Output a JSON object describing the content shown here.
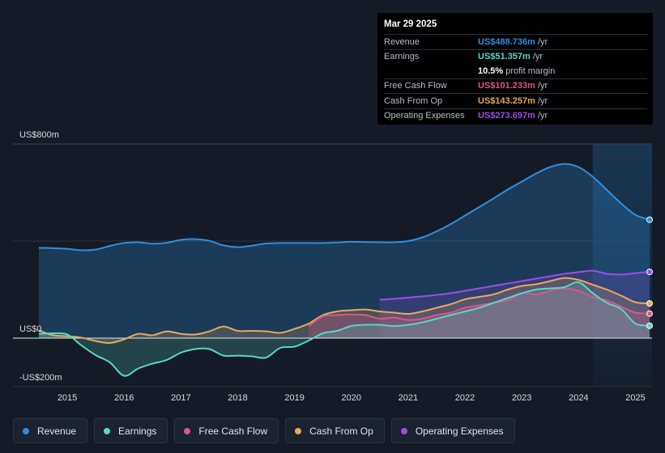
{
  "tooltip": {
    "date": "Mar 29 2025",
    "revenue_label": "Revenue",
    "revenue_value": "US$488.736m",
    "earnings_label": "Earnings",
    "earnings_value": "US$51.357m",
    "margin_value": "10.5%",
    "margin_text": "profit margin",
    "fcf_label": "Free Cash Flow",
    "fcf_value": "US$101.233m",
    "cfo_label": "Cash From Op",
    "cfo_value": "US$143.257m",
    "opex_label": "Operating Expenses",
    "opex_value": "US$273.697m",
    "unit": "/yr"
  },
  "legend": [
    {
      "label": "Revenue",
      "color": "#2e8fe0"
    },
    {
      "label": "Earnings",
      "color": "#56d8c8"
    },
    {
      "label": "Free Cash Flow",
      "color": "#d9578a"
    },
    {
      "label": "Cash From Op",
      "color": "#e6a95a"
    },
    {
      "label": "Operating Expenses",
      "color": "#9b4ee6"
    }
  ],
  "colors": {
    "revenue": "#2e8fe0",
    "earnings": "#56d8c8",
    "fcf": "#d9578a",
    "cfo": "#e6a95a",
    "opex": "#9b4ee6"
  },
  "chart_data": {
    "type": "area",
    "title": "",
    "unit": "US$m",
    "y_tick_labels": {
      "800": "US$800m",
      "0": "US$0",
      "-200": "-US$200m"
    },
    "ylim": [
      -200,
      800
    ],
    "xlim": [
      2014.5,
      2025.25
    ],
    "x_ticks": [
      2015,
      2016,
      2017,
      2018,
      2019,
      2020,
      2021,
      2022,
      2023,
      2024,
      2025
    ],
    "x_tick_labels": [
      "2015",
      "2016",
      "2017",
      "2018",
      "2019",
      "2020",
      "2021",
      "2022",
      "2023",
      "2024",
      "2025"
    ],
    "forecast_start": 2024.25,
    "series": [
      {
        "name": "Revenue",
        "key": "revenue",
        "x": [
          2014.5,
          2014.75,
          2015.0,
          2015.25,
          2015.5,
          2015.75,
          2016.0,
          2016.25,
          2016.5,
          2016.75,
          2017.0,
          2017.25,
          2017.5,
          2017.75,
          2018.0,
          2018.25,
          2018.5,
          2018.75,
          2019.0,
          2019.25,
          2019.5,
          2019.75,
          2020.0,
          2020.25,
          2020.5,
          2020.75,
          2021.0,
          2021.25,
          2021.5,
          2021.75,
          2022.0,
          2022.25,
          2022.5,
          2022.75,
          2023.0,
          2023.25,
          2023.5,
          2023.75,
          2024.0,
          2024.25,
          2024.5,
          2024.75,
          2025.0,
          2025.25
        ],
        "values": [
          372,
          371,
          368,
          362,
          365,
          380,
          392,
          395,
          389,
          393,
          405,
          408,
          401,
          382,
          375,
          381,
          390,
          392,
          392,
          392,
          392,
          394,
          397,
          396,
          395,
          395,
          400,
          415,
          440,
          470,
          505,
          540,
          575,
          612,
          645,
          678,
          705,
          718,
          705,
          665,
          610,
          555,
          508,
          488
        ]
      },
      {
        "name": "Earnings",
        "key": "earnings",
        "x": [
          2014.5,
          2014.75,
          2015.0,
          2015.25,
          2015.5,
          2015.75,
          2016.0,
          2016.25,
          2016.5,
          2016.75,
          2017.0,
          2017.25,
          2017.5,
          2017.75,
          2018.0,
          2018.25,
          2018.5,
          2018.75,
          2019.0,
          2019.25,
          2019.5,
          2019.75,
          2020.0,
          2020.25,
          2020.5,
          2020.75,
          2021.0,
          2021.25,
          2021.5,
          2021.75,
          2022.0,
          2022.25,
          2022.5,
          2022.75,
          2023.0,
          2023.25,
          2023.5,
          2023.75,
          2024.0,
          2024.25,
          2024.5,
          2024.75,
          2025.0,
          2025.25
        ],
        "values": [
          18,
          20,
          15,
          -30,
          -70,
          -100,
          -155,
          -125,
          -105,
          -90,
          -60,
          -45,
          -45,
          -72,
          -72,
          -75,
          -80,
          -40,
          -35,
          -10,
          20,
          30,
          50,
          55,
          55,
          50,
          55,
          65,
          80,
          95,
          110,
          125,
          145,
          165,
          185,
          200,
          205,
          210,
          230,
          185,
          145,
          120,
          60,
          51
        ]
      },
      {
        "name": "Free Cash Flow",
        "key": "fcf",
        "x": [
          2019.25,
          2019.5,
          2019.75,
          2020.0,
          2020.25,
          2020.5,
          2020.75,
          2021.0,
          2021.25,
          2021.5,
          2021.75,
          2022.0,
          2022.25,
          2022.5,
          2022.75,
          2023.0,
          2023.25,
          2023.5,
          2023.75,
          2024.0,
          2024.25,
          2024.5,
          2024.75,
          2025.0,
          2025.25
        ],
        "values": [
          50,
          90,
          95,
          98,
          95,
          80,
          85,
          75,
          80,
          95,
          105,
          125,
          135,
          145,
          155,
          185,
          180,
          195,
          205,
          195,
          170,
          155,
          130,
          105,
          101
        ]
      },
      {
        "name": "Cash From Op",
        "key": "cfo",
        "x": [
          2014.5,
          2014.75,
          2015.0,
          2015.25,
          2015.5,
          2015.75,
          2016.0,
          2016.25,
          2016.5,
          2016.75,
          2017.0,
          2017.25,
          2017.5,
          2017.75,
          2018.0,
          2018.25,
          2018.5,
          2018.75,
          2019.0,
          2019.25,
          2019.5,
          2019.75,
          2020.0,
          2020.25,
          2020.5,
          2020.75,
          2021.0,
          2021.25,
          2021.5,
          2021.75,
          2022.0,
          2022.25,
          2022.5,
          2022.75,
          2023.0,
          2023.25,
          2023.5,
          2023.75,
          2024.0,
          2024.25,
          2024.5,
          2024.75,
          2025.0,
          2025.25
        ],
        "values": [
          32,
          12,
          8,
          2,
          -12,
          -20,
          -5,
          18,
          12,
          28,
          18,
          15,
          28,
          48,
          30,
          30,
          28,
          22,
          38,
          60,
          95,
          110,
          115,
          118,
          110,
          105,
          100,
          110,
          125,
          140,
          160,
          170,
          180,
          200,
          215,
          222,
          235,
          248,
          240,
          220,
          200,
          175,
          148,
          143
        ]
      },
      {
        "name": "Operating Expenses",
        "key": "opex",
        "x": [
          2020.5,
          2020.75,
          2021.0,
          2021.25,
          2021.5,
          2021.75,
          2022.0,
          2022.25,
          2022.5,
          2022.75,
          2023.0,
          2023.25,
          2023.5,
          2023.75,
          2024.0,
          2024.25,
          2024.5,
          2024.75,
          2025.0,
          2025.25
        ],
        "values": [
          158,
          162,
          167,
          172,
          178,
          185,
          195,
          205,
          215,
          225,
          235,
          245,
          255,
          265,
          272,
          278,
          265,
          262,
          268,
          273
        ]
      }
    ]
  }
}
